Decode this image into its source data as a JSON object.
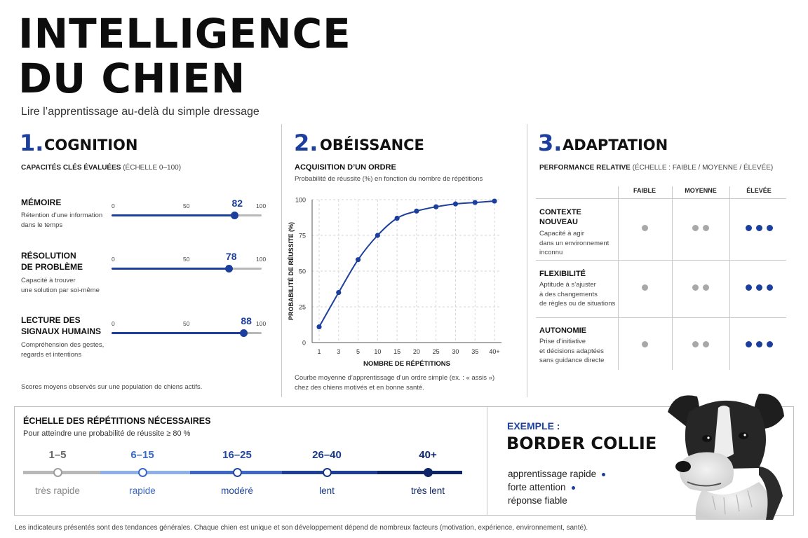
{
  "header": {
    "title_line1": "INTELLIGENCE",
    "title_line2": "DU CHIEN",
    "subtitle": "Lire l’apprentissage au-delà du simple dressage"
  },
  "cognition": {
    "number": "1.",
    "title": "COGNITION",
    "label": "CAPACITÉS CLÉS ÉVALUÉES",
    "label_scale": "(ÉCHELLE 0–100)",
    "skills": [
      {
        "name_l1": "MÉMOIRE",
        "name_l2": "",
        "desc_l1": "Rétention d’une information",
        "desc_l2": "dans le temps",
        "score": 82,
        "score_label": "82",
        "tick_min": "0",
        "tick_mid": "50",
        "tick_max": "100"
      },
      {
        "name_l1": "RÉSOLUTION",
        "name_l2": "DE PROBLÈME",
        "desc_l1": "Capacité à trouver",
        "desc_l2": "une solution par soi-même",
        "score": 78,
        "score_label": "78",
        "tick_min": "0",
        "tick_mid": "50",
        "tick_max": "100"
      },
      {
        "name_l1": "LECTURE DES",
        "name_l2": "SIGNAUX HUMAINS",
        "desc_l1": "Compréhension des gestes,",
        "desc_l2": "regards et intentions",
        "score": 88,
        "score_label": "88",
        "tick_min": "0",
        "tick_mid": "50",
        "tick_max": "100"
      }
    ],
    "note": "Scores moyens observés sur une population de chiens actifs."
  },
  "obeissance": {
    "number": "2.",
    "title": "OBÉISSANCE",
    "label": "ACQUISITION D’UN ORDRE",
    "sublabel": "Probabilité de réussite (%) en fonction du nombre de répétitions",
    "note_l1": "Courbe moyenne d’apprentissage d’un ordre simple (ex. : « assis »)",
    "note_l2": "chez des chiens motivés et en bonne santé."
  },
  "chart_data": {
    "type": "line",
    "title": "ACQUISITION D’UN ORDRE",
    "subtitle": "Probabilité de réussite (%) en fonction du nombre de répétitions",
    "xlabel": "NOMBRE DE RÉPÉTITIONS",
    "ylabel": "PROBABILITÉ DE RÉUSSITE (%)",
    "categories": [
      "1",
      "3",
      "5",
      "10",
      "15",
      "20",
      "25",
      "30",
      "35",
      "40+"
    ],
    "values": [
      11,
      35,
      58,
      75,
      87,
      92,
      95,
      97,
      98,
      99
    ],
    "yticks": [
      "0",
      "25",
      "50",
      "75",
      "100"
    ],
    "ylim": [
      0,
      100
    ],
    "grid": "on, dashed",
    "color": "#1c3f9e"
  },
  "adaptation": {
    "number": "3.",
    "title": "ADAPTATION",
    "label": "PERFORMANCE RELATIVE",
    "label_scale": "(ÉCHELLE : FAIBLE / MOYENNE / ÉLEVÉE)",
    "columns": [
      "FAIBLE",
      "MOYENNE",
      "ÉLEVÉE"
    ],
    "rows": [
      {
        "name_l1": "CONTEXTE",
        "name_l2": "NOUVEAU",
        "desc": [
          "Capacité à agir",
          "dans un environnement",
          "inconnu"
        ]
      },
      {
        "name_l1": "FLEXIBILITÉ",
        "name_l2": "",
        "desc": [
          "Aptitude à s’ajuster",
          "à des changements",
          "de règles ou de situations"
        ]
      },
      {
        "name_l1": "AUTONOMIE",
        "name_l2": "",
        "desc": [
          "Prise d’initiative",
          "et décisions adaptées",
          "sans guidance directe"
        ]
      }
    ],
    "dot_counts": [
      1,
      2,
      3
    ]
  },
  "scale": {
    "title": "ÉCHELLE DES RÉPÉTITIONS NÉCESSAIRES",
    "subtitle": "Pour atteindre une probabilité de réussite ≥ 80 %",
    "steps": [
      {
        "range": "1–5",
        "label": "très rapide",
        "color": "#9e9e9e"
      },
      {
        "range": "6–15",
        "label": "rapide",
        "color": "#3a68c9"
      },
      {
        "range": "16–25",
        "label": "modéré",
        "color": "#23489f"
      },
      {
        "range": "26–40",
        "label": "lent",
        "color": "#163887"
      },
      {
        "range": "40+",
        "label": "très lent",
        "color": "#0d2566"
      }
    ]
  },
  "example": {
    "label": "EXEMPLE :",
    "breed": "BORDER COLLIE",
    "traits": [
      "apprentissage rapide",
      "forte attention",
      "réponse fiable"
    ]
  },
  "footer": {
    "text": "Les indicateurs présentés sont des tendances générales. Chaque chien est unique et son développement dépend de nombreux facteurs (motivation, expérience, environnement, santé)."
  }
}
